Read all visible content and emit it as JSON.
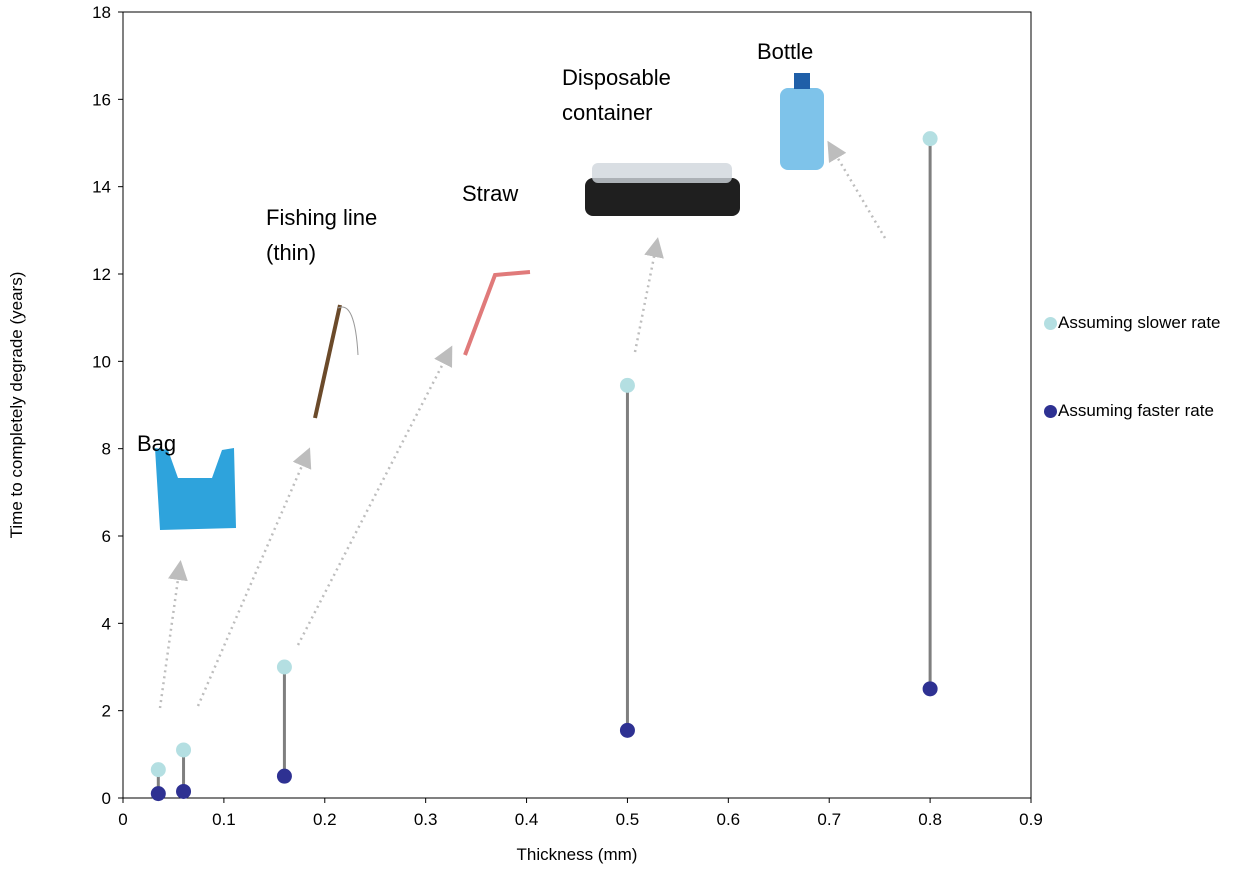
{
  "chart_data": {
    "type": "dumbbell",
    "xlabel": "Thickness (mm)",
    "ylabel": "Time to completely degrade (years)",
    "x": [
      0.035,
      0.06,
      0.16,
      0.5,
      0.8
    ],
    "series": [
      {
        "name": "Assuming slower rate",
        "color": "#b4dfe2",
        "values": [
          0.65,
          1.1,
          3.0,
          9.45,
          15.1
        ]
      },
      {
        "name": "Assuming faster rate",
        "color": "#2e3192",
        "values": [
          0.1,
          0.15,
          0.5,
          1.55,
          2.5
        ]
      }
    ],
    "connector_color": "#7f7f7f",
    "xlim": [
      0,
      0.9
    ],
    "xticks": [
      0,
      0.1,
      0.2,
      0.3,
      0.4,
      0.5,
      0.6,
      0.7,
      0.8,
      0.9
    ],
    "ylim": [
      0,
      18
    ],
    "yticks": [
      0,
      2,
      4,
      6,
      8,
      10,
      12,
      14,
      16,
      18
    ],
    "legend": "right",
    "annotations": [
      [
        "Bag"
      ],
      [
        "Fishing line",
        "(thin)"
      ],
      [
        "Straw"
      ],
      [
        "Disposable",
        "container"
      ],
      [
        "Bottle"
      ]
    ]
  }
}
